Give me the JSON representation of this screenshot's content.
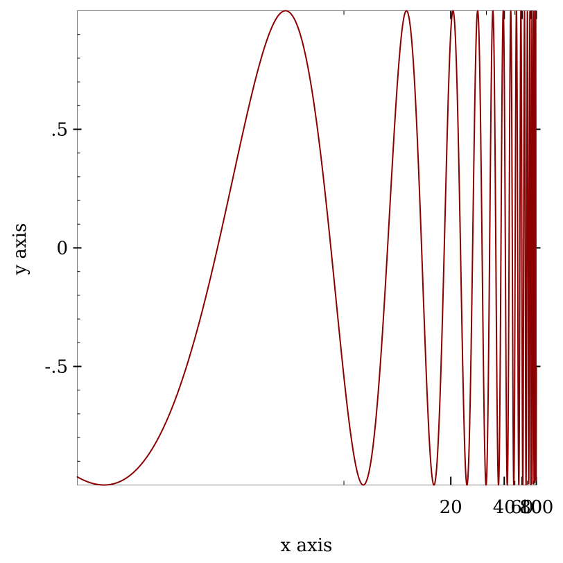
{
  "chart_data": {
    "type": "line",
    "title": "",
    "xlabel": "x axis",
    "ylabel": "y axis",
    "x_scale": "reciprocal",
    "xlim": [
      4.45,
      100
    ],
    "ylim": [
      -1,
      1
    ],
    "grid": false,
    "x_ticks": [
      {
        "value": 20,
        "label": "20"
      },
      {
        "value": 40,
        "label": "40"
      },
      {
        "value": 60,
        "label": "60"
      },
      {
        "value": 80,
        "label": "80"
      },
      {
        "value": 100,
        "label": "100"
      }
    ],
    "y_ticks": [
      {
        "value": 0.5,
        "label": ".5"
      },
      {
        "value": 0,
        "label": "0"
      },
      {
        "value": -0.5,
        "label": "-.5"
      }
    ],
    "colors": {
      "series": "#8b0000",
      "frame": "#7f7f7f"
    },
    "series": [
      {
        "function": "sin(x)",
        "x": [
          4.45,
          4.712,
          5.498,
          6.283,
          7.069,
          7.854,
          8.639,
          9.425,
          10.21,
          10.996,
          11.781,
          14.137,
          20.42,
          26.704,
          32.987,
          39.27,
          45.553,
          51.836,
          58.119,
          64.403,
          70.686,
          76.969,
          83.252,
          89.535,
          95.819,
          100
        ],
        "y": [
          -0.966,
          -1,
          -0.707,
          0,
          0.707,
          1,
          0.707,
          0,
          -0.707,
          -1,
          -0.707,
          1,
          1,
          1,
          1,
          1,
          1,
          1,
          1,
          1,
          1,
          1,
          1,
          1,
          1,
          -0.506
        ]
      }
    ]
  }
}
